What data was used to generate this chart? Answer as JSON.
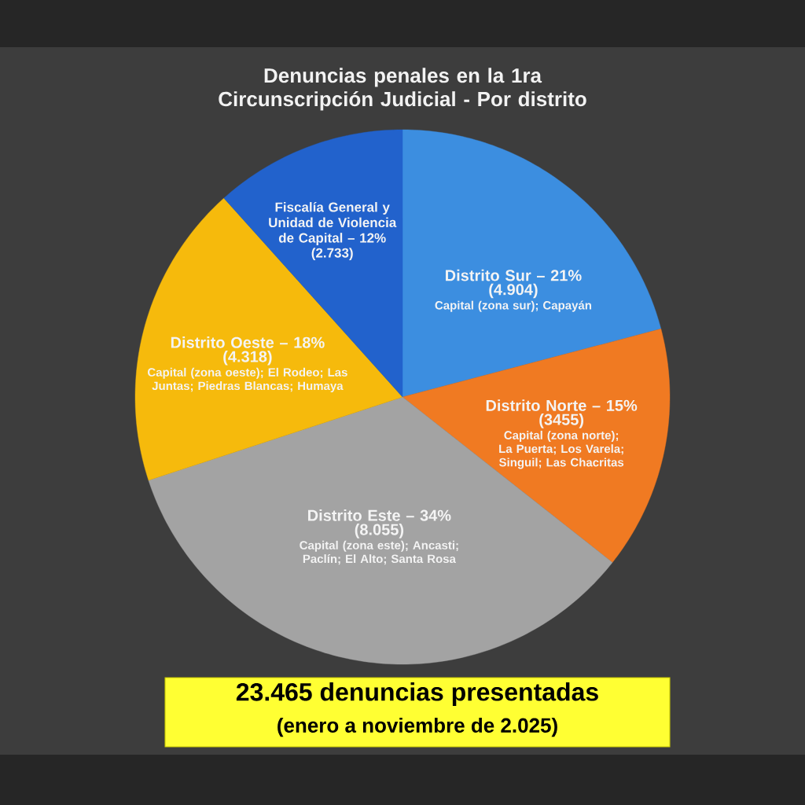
{
  "chart_data": {
    "type": "pie",
    "title": "Denuncias penales en la 1ra Circunscripción Judicial - Por distrito",
    "categories": [
      "Distrito Sur – 21%",
      "Distrito Norte – 15%",
      "Distrito Este – 34%",
      "Distrito Oeste – 18%",
      "Fiscalía General y Unidad de Violencia de Capital – 12%"
    ],
    "values": [
      4904,
      3455,
      8055,
      4318,
      2733
    ],
    "value_labels": [
      "(4.904)",
      "(3455)",
      "(8.055)",
      "(4.318)",
      "(2.733)"
    ],
    "colors": [
      "#3c8ee0",
      "#f07a22",
      "#a3a3a3",
      "#f6ba0c",
      "#2262cc"
    ],
    "annotations": [
      {
        "text": "Capital (zona sur); Capayán",
        "x": "Distrito Sur – 21%"
      },
      {
        "text": "Capital (zona norte); La Puerta; Los Varela; Singuil; Las Chacritas",
        "x": "Distrito Norte – 15%"
      },
      {
        "text": "Capital (zona este); Ancasti; Paclín; El Alto; Santa Rosa",
        "x": "Distrito Este – 34%"
      },
      {
        "text": "Capital (zona oeste); El Rodeo; Las Juntas; Piedras Blancas; Humaya",
        "x": "Distrito Oeste – 18%"
      },
      "23.465 denuncias presentadas",
      "(enero a noviembre de 2.025)"
    ]
  }
}
